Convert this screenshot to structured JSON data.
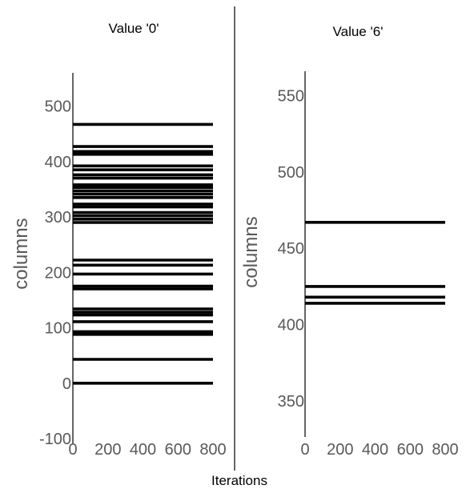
{
  "chart_data": [
    {
      "type": "line",
      "title": "Value '0'",
      "xlabel": "",
      "ylabel": "columns",
      "xlim": [
        0,
        800
      ],
      "ylim": [
        -100,
        560
      ],
      "x_ticks": [
        "0",
        "200",
        "400",
        "600",
        "800"
      ],
      "y_ticks": [
        "-100",
        "0",
        "100",
        "200",
        "300",
        "400",
        "500"
      ],
      "x_tick_values": [
        0,
        200,
        400,
        600,
        800
      ],
      "y_tick_values": [
        -100,
        0,
        100,
        200,
        300,
        400,
        500
      ],
      "grid": false,
      "series_color": "#000000",
      "series": [
        {
          "x": [
            0,
            800
          ],
          "y": [
            0,
            0
          ]
        },
        {
          "x": [
            0,
            800
          ],
          "y": [
            43,
            43
          ]
        },
        {
          "x": [
            0,
            800
          ],
          "y": [
            88,
            88
          ]
        },
        {
          "x": [
            0,
            800
          ],
          "y": [
            93,
            93
          ]
        },
        {
          "x": [
            0,
            800
          ],
          "y": [
            111,
            111
          ]
        },
        {
          "x": [
            0,
            800
          ],
          "y": [
            123,
            123
          ]
        },
        {
          "x": [
            0,
            800
          ],
          "y": [
            128,
            128
          ]
        },
        {
          "x": [
            0,
            800
          ],
          "y": [
            134,
            134
          ]
        },
        {
          "x": [
            0,
            800
          ],
          "y": [
            170,
            170
          ]
        },
        {
          "x": [
            0,
            800
          ],
          "y": [
            175,
            175
          ]
        },
        {
          "x": [
            0,
            800
          ],
          "y": [
            197,
            197
          ]
        },
        {
          "x": [
            0,
            800
          ],
          "y": [
            213,
            213
          ]
        },
        {
          "x": [
            0,
            800
          ],
          "y": [
            222,
            222
          ]
        },
        {
          "x": [
            0,
            800
          ],
          "y": [
            290,
            290
          ]
        },
        {
          "x": [
            0,
            800
          ],
          "y": [
            296,
            296
          ]
        },
        {
          "x": [
            0,
            800
          ],
          "y": [
            302,
            302
          ]
        },
        {
          "x": [
            0,
            800
          ],
          "y": [
            308,
            308
          ]
        },
        {
          "x": [
            0,
            800
          ],
          "y": [
            318,
            318
          ]
        },
        {
          "x": [
            0,
            800
          ],
          "y": [
            323,
            323
          ]
        },
        {
          "x": [
            0,
            800
          ],
          "y": [
            335,
            335
          ]
        },
        {
          "x": [
            0,
            800
          ],
          "y": [
            341,
            341
          ]
        },
        {
          "x": [
            0,
            800
          ],
          "y": [
            347,
            347
          ]
        },
        {
          "x": [
            0,
            800
          ],
          "y": [
            353,
            353
          ]
        },
        {
          "x": [
            0,
            800
          ],
          "y": [
            358,
            358
          ]
        },
        {
          "x": [
            0,
            800
          ],
          "y": [
            370,
            370
          ]
        },
        {
          "x": [
            0,
            800
          ],
          "y": [
            376,
            376
          ]
        },
        {
          "x": [
            0,
            800
          ],
          "y": [
            385,
            385
          ]
        },
        {
          "x": [
            0,
            800
          ],
          "y": [
            392,
            392
          ]
        },
        {
          "x": [
            0,
            800
          ],
          "y": [
            413,
            413
          ]
        },
        {
          "x": [
            0,
            800
          ],
          "y": [
            418,
            418
          ]
        },
        {
          "x": [
            0,
            800
          ],
          "y": [
            427,
            427
          ]
        },
        {
          "x": [
            0,
            800
          ],
          "y": [
            467,
            467
          ]
        }
      ]
    },
    {
      "type": "line",
      "title": "Value '6'",
      "xlabel": "",
      "ylabel": "columns",
      "xlim": [
        0,
        800
      ],
      "ylim": [
        318,
        566
      ],
      "x_ticks": [
        "0",
        "200",
        "400",
        "600",
        "800"
      ],
      "y_ticks": [
        "350",
        "400",
        "450",
        "500",
        "550"
      ],
      "x_tick_values": [
        0,
        200,
        400,
        600,
        800
      ],
      "y_tick_values": [
        350,
        400,
        450,
        500,
        550
      ],
      "grid": false,
      "series_color": "#000000",
      "series": [
        {
          "x": [
            0,
            800
          ],
          "y": [
            414,
            414
          ]
        },
        {
          "x": [
            0,
            800
          ],
          "y": [
            418,
            418
          ]
        },
        {
          "x": [
            0,
            800
          ],
          "y": [
            425,
            425
          ]
        },
        {
          "x": [
            0,
            800
          ],
          "y": [
            467,
            467
          ]
        }
      ]
    }
  ],
  "figure": {
    "shared_xlabel": "Iterations",
    "divider_color": "#000000"
  }
}
